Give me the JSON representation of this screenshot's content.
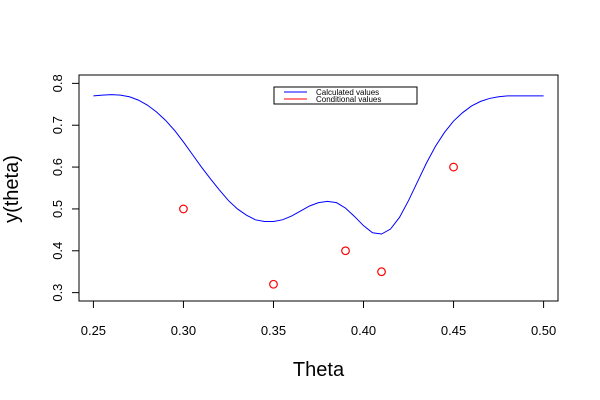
{
  "chart_data": {
    "type": "line",
    "title": "",
    "xlabel": "Theta",
    "ylabel": "y(theta)",
    "xlim": [
      0.242,
      0.508
    ],
    "ylim": [
      0.28,
      0.82
    ],
    "x_ticks": [
      0.25,
      0.3,
      0.35,
      0.4,
      0.45,
      0.5
    ],
    "x_tick_labels": [
      "0.25",
      "0.30",
      "0.35",
      "0.40",
      "0.45",
      "0.50"
    ],
    "y_ticks": [
      0.3,
      0.4,
      0.5,
      0.6,
      0.7,
      0.8
    ],
    "y_tick_labels": [
      "0.3",
      "0.4",
      "0.5",
      "0.6",
      "0.7",
      "0.8"
    ],
    "grid": false,
    "legend_position": "top-center",
    "series": [
      {
        "name": "Calculated values",
        "kind": "line",
        "color": "#0000ff",
        "x": [
          0.25,
          0.255,
          0.26,
          0.265,
          0.27,
          0.275,
          0.28,
          0.285,
          0.29,
          0.295,
          0.3,
          0.305,
          0.31,
          0.315,
          0.32,
          0.325,
          0.33,
          0.335,
          0.34,
          0.345,
          0.35,
          0.355,
          0.36,
          0.365,
          0.37,
          0.375,
          0.38,
          0.385,
          0.39,
          0.395,
          0.4,
          0.405,
          0.41,
          0.415,
          0.42,
          0.425,
          0.43,
          0.435,
          0.44,
          0.445,
          0.45,
          0.455,
          0.46,
          0.465,
          0.47,
          0.475,
          0.48,
          0.485,
          0.49,
          0.495,
          0.5
        ],
        "y": [
          0.77,
          0.772,
          0.773,
          0.772,
          0.768,
          0.76,
          0.748,
          0.732,
          0.712,
          0.688,
          0.66,
          0.63,
          0.6,
          0.572,
          0.545,
          0.52,
          0.5,
          0.485,
          0.474,
          0.47,
          0.47,
          0.474,
          0.483,
          0.495,
          0.507,
          0.515,
          0.518,
          0.515,
          0.502,
          0.482,
          0.46,
          0.443,
          0.44,
          0.452,
          0.48,
          0.52,
          0.565,
          0.61,
          0.65,
          0.683,
          0.71,
          0.73,
          0.746,
          0.757,
          0.764,
          0.768,
          0.77,
          0.77,
          0.77,
          0.77,
          0.77
        ]
      },
      {
        "name": "Conditional values",
        "kind": "points",
        "color": "#ff0000",
        "x": [
          0.3,
          0.35,
          0.39,
          0.41,
          0.45
        ],
        "y": [
          0.5,
          0.32,
          0.4,
          0.35,
          0.6
        ]
      }
    ]
  }
}
